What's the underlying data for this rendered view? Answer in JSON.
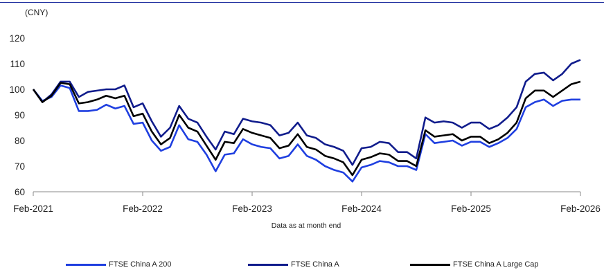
{
  "chart_data": {
    "type": "line",
    "unit_label": "(CNY)",
    "note": "Data as at month end",
    "ylim": [
      60,
      120
    ],
    "yticks": [
      60,
      70,
      80,
      90,
      100,
      110,
      120
    ],
    "x_tick_labels": [
      "Feb-2021",
      "Feb-2022",
      "Feb-2023",
      "Feb-2024",
      "Feb-2025",
      "Feb-2026"
    ],
    "x": [
      "2021-02",
      "2021-03",
      "2021-04",
      "2021-05",
      "2021-06",
      "2021-07",
      "2021-08",
      "2021-09",
      "2021-10",
      "2021-11",
      "2021-12",
      "2022-01",
      "2022-02",
      "2022-03",
      "2022-04",
      "2022-05",
      "2022-06",
      "2022-07",
      "2022-08",
      "2022-09",
      "2022-10",
      "2022-11",
      "2022-12",
      "2023-01",
      "2023-02",
      "2023-03",
      "2023-04",
      "2023-05",
      "2023-06",
      "2023-07",
      "2023-08",
      "2023-09",
      "2023-10",
      "2023-11",
      "2023-12",
      "2024-01",
      "2024-02",
      "2024-03",
      "2024-04",
      "2024-05",
      "2024-06",
      "2024-07",
      "2024-08",
      "2024-09",
      "2024-10",
      "2024-11",
      "2024-12",
      "2025-01",
      "2025-02",
      "2025-03",
      "2025-04",
      "2025-05",
      "2025-06",
      "2025-07",
      "2025-08",
      "2025-09",
      "2025-10",
      "2025-11",
      "2025-12",
      "2026-01",
      "2026-02"
    ],
    "grid": false,
    "legend_position": "bottom",
    "series": [
      {
        "name": "FTSE China A 200",
        "color": "#1f3fe0",
        "values": [
          100,
          95.5,
          97,
          101.5,
          100.5,
          91.5,
          91.5,
          92,
          94,
          92.5,
          93.5,
          86.5,
          87,
          80,
          76,
          77.5,
          86,
          80.5,
          79.5,
          74.5,
          68,
          74.5,
          75,
          80.5,
          78.5,
          77.5,
          77,
          73,
          74,
          78.5,
          74,
          72.5,
          70,
          68.5,
          67.5,
          64,
          69.5,
          70.5,
          72,
          71.5,
          70,
          70,
          68.5,
          82.5,
          79,
          79.5,
          80,
          78,
          79.5,
          79.5,
          77.5,
          79,
          81,
          84.5,
          93,
          95,
          96,
          93.5,
          95.5,
          96,
          96
        ]
      },
      {
        "name": "FTSE China A",
        "color": "#101c8c",
        "values": [
          100,
          95,
          98,
          103,
          103,
          97,
          99,
          99.5,
          100,
          100,
          101.5,
          93,
          94.5,
          87.5,
          81.5,
          85,
          93.5,
          88.5,
          87,
          81.5,
          76.5,
          83.5,
          82.5,
          88.5,
          87.5,
          87,
          86,
          82,
          83,
          87,
          82,
          81,
          78.5,
          77.5,
          76,
          70.5,
          77,
          77.5,
          79.5,
          79,
          75.5,
          75.5,
          73,
          89,
          87,
          87.5,
          87,
          85,
          87,
          87,
          84.5,
          86,
          89,
          93,
          103,
          106,
          106.5,
          103.5,
          106,
          110,
          111.5
        ]
      },
      {
        "name": "FTSE China A Large Cap",
        "color": "#000000",
        "values": [
          100,
          95,
          97.5,
          102.5,
          102,
          94.5,
          95,
          96,
          97.5,
          96.5,
          97.5,
          89.5,
          90.5,
          83.5,
          78.5,
          81,
          90,
          85,
          83.5,
          78,
          72.5,
          79.5,
          79,
          84.5,
          83,
          82,
          81,
          77,
          78,
          82.5,
          77.5,
          76.5,
          74,
          73,
          71.5,
          66.5,
          72.5,
          73.5,
          75,
          74.5,
          72,
          72,
          70,
          84,
          81.5,
          82,
          82.5,
          80,
          81.5,
          81.5,
          79,
          80.5,
          83,
          87,
          96.5,
          99.5,
          99.5,
          97,
          99.5,
          102,
          103
        ]
      }
    ]
  }
}
